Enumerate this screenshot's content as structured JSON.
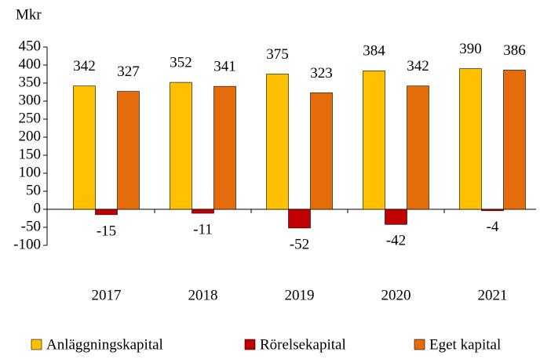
{
  "chart_data": {
    "type": "bar",
    "y_label": "Mkr",
    "categories": [
      "2017",
      "2018",
      "2019",
      "2020",
      "2021"
    ],
    "series": [
      {
        "name": "Anläggningskapital",
        "color": "#ffc000",
        "values": [
          342,
          352,
          375,
          384,
          390
        ]
      },
      {
        "name": "Rörelsekapital",
        "color": "#c00000",
        "values": [
          -15,
          -11,
          -52,
          -42,
          -4
        ]
      },
      {
        "name": "Eget kapital",
        "color": "#e46c0a",
        "values": [
          327,
          341,
          323,
          342,
          386
        ]
      }
    ],
    "ylim": [
      -100,
      450
    ],
    "yticks": [
      -100,
      -50,
      0,
      50,
      100,
      150,
      200,
      250,
      300,
      350,
      400,
      450
    ],
    "legend": "bottom"
  }
}
